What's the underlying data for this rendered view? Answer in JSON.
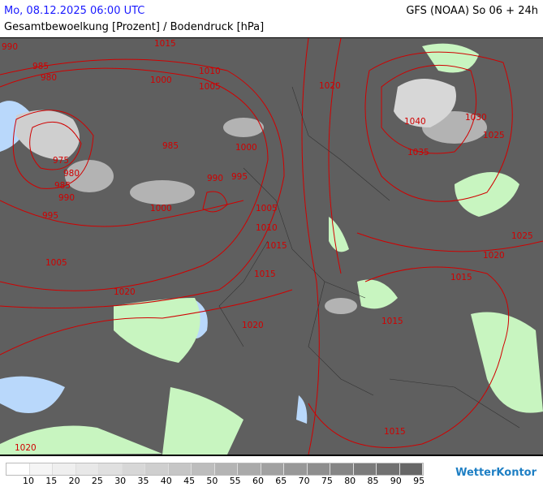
{
  "header": {
    "datetime": "Mo, 08.12.2025 06:00 UTC",
    "model": "GFS (NOAA) So 06 + 24h",
    "subtitle": "Gesamtbewoelkung [Prozent] / Bodendruck [hPa]"
  },
  "map": {
    "colors": {
      "cloud": "#5f5f5f",
      "land_clear": "#c8f5c0",
      "water_clear": "#b9d8fb",
      "isobar": "#d00000",
      "borders": "#333333"
    },
    "isobar_labels": [
      "990",
      "1015",
      "985",
      "980",
      "1000",
      "1010",
      "1005",
      "1020",
      "975",
      "980",
      "985",
      "990",
      "985",
      "990",
      "995",
      "1000",
      "1040",
      "1030",
      "1025",
      "1035",
      "995",
      "1000",
      "1005",
      "1010",
      "1015",
      "1025",
      "1005",
      "1020",
      "1015",
      "1020",
      "1015",
      "1020",
      "1015",
      "1015",
      "1020"
    ]
  },
  "legend": {
    "colors": [
      "#ffffff",
      "#f5f5f5",
      "#efefef",
      "#e8e8e8",
      "#e0e0e0",
      "#d7d7d7",
      "#cfcfcf",
      "#c6c6c6",
      "#bdbdbd",
      "#b4b4b4",
      "#aaaaaa",
      "#a1a1a1",
      "#989898",
      "#8e8e8e",
      "#858585",
      "#7b7b7b",
      "#717171",
      "#676767"
    ],
    "labels": [
      "10",
      "15",
      "20",
      "25",
      "30",
      "35",
      "40",
      "45",
      "50",
      "55",
      "60",
      "65",
      "70",
      "75",
      "80",
      "85",
      "90",
      "95"
    ]
  },
  "brand": {
    "logo": "WetterKontor"
  }
}
